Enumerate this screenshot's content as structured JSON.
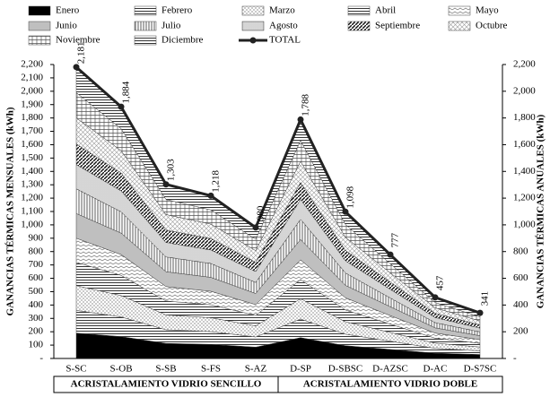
{
  "chart_data": {
    "type": "stacked_area",
    "categories": [
      "S-SC",
      "S-OB",
      "S-SB",
      "S-FS",
      "S-AZ",
      "D-SP",
      "D-SBSC",
      "D-AZSC",
      "D-AC",
      "D-S7SC"
    ],
    "groups": [
      {
        "label": "ACRISTALAMIENTO VIDRIO SENCILLO",
        "span": [
          0,
          4
        ]
      },
      {
        "label": "ACRISTALAMIENTO VIDRIO DOBLE",
        "span": [
          5,
          9
        ]
      }
    ],
    "ylabel": "GANANCIAS TÉRMICAS MENSUALES (kWh)",
    "y2label": "GANANCIAS TÉRMICAS ANUALES (kWh)",
    "ylim": [
      0,
      2200
    ],
    "y2lim": [
      0,
      2200
    ],
    "yticks": [
      {
        "value": 0,
        "label": "-"
      },
      100,
      200,
      300,
      400,
      500,
      600,
      700,
      800,
      900,
      {
        "value": 1000,
        "label": "1,000"
      },
      {
        "value": 1100,
        "label": "1,100"
      },
      {
        "value": 1200,
        "label": "1,200"
      },
      {
        "value": 1300,
        "label": "1,300"
      },
      {
        "value": 1400,
        "label": "1,400"
      },
      {
        "value": 1500,
        "label": "1,500"
      },
      {
        "value": 1600,
        "label": "1,600"
      },
      {
        "value": 1700,
        "label": "1,700"
      },
      {
        "value": 1800,
        "label": "1,800"
      },
      {
        "value": 1900,
        "label": "1,900"
      },
      {
        "value": 2000,
        "label": "2,000"
      },
      {
        "value": 2100,
        "label": "2,100"
      },
      {
        "value": 2200,
        "label": "2,200"
      }
    ],
    "y2ticks": [
      {
        "value": 0,
        "label": "-"
      },
      200,
      400,
      600,
      800,
      {
        "value": 1000,
        "label": "1,000"
      },
      {
        "value": 1200,
        "label": "1,200"
      },
      {
        "value": 1400,
        "label": "1,400"
      },
      {
        "value": 1600,
        "label": "1,600"
      },
      {
        "value": 1800,
        "label": "1,800"
      },
      {
        "value": 2000,
        "label": "2,000"
      },
      {
        "value": 2200,
        "label": "2,200"
      }
    ],
    "series": [
      {
        "name": "Enero",
        "pattern": "solid",
        "color": "#000000",
        "values": [
          190,
          164,
          113,
          106,
          85,
          156,
          96,
          68,
          40,
          30
        ]
      },
      {
        "name": "Febrero",
        "pattern": "hlines",
        "color": "#555555",
        "values": [
          170,
          147,
          102,
          95,
          76,
          139,
          86,
          61,
          36,
          27
        ]
      },
      {
        "name": "Marzo",
        "pattern": "dots",
        "color": "#444444",
        "values": [
          185,
          160,
          111,
          104,
          83,
          152,
          93,
          66,
          39,
          29
        ]
      },
      {
        "name": "Abril",
        "pattern": "hlines",
        "color": "#888888",
        "values": [
          174,
          151,
          104,
          97,
          78,
          143,
          88,
          62,
          37,
          27
        ]
      },
      {
        "name": "Mayo",
        "pattern": "zigzag",
        "color": "#666666",
        "values": [
          181,
          156,
          108,
          101,
          81,
          148,
          91,
          64,
          38,
          28
        ]
      },
      {
        "name": "Junio",
        "pattern": "solid",
        "color": "#bfbfbf",
        "values": [
          185,
          160,
          111,
          104,
          83,
          152,
          93,
          66,
          39,
          29
        ]
      },
      {
        "name": "Julio",
        "pattern": "vlines",
        "color": "#333333",
        "values": [
          185,
          160,
          111,
          104,
          83,
          152,
          93,
          66,
          39,
          29
        ]
      },
      {
        "name": "Agosto",
        "pattern": "densedots",
        "color": "#333333",
        "values": [
          181,
          156,
          108,
          101,
          81,
          148,
          91,
          64,
          38,
          28
        ]
      },
      {
        "name": "Septiembre",
        "pattern": "diag",
        "color": "#111111",
        "values": [
          155,
          134,
          93,
          86,
          70,
          127,
          78,
          55,
          32,
          24
        ]
      },
      {
        "name": "Octubre",
        "pattern": "cross",
        "color": "#999999",
        "values": [
          194,
          168,
          116,
          108,
          87,
          159,
          98,
          69,
          41,
          30
        ]
      },
      {
        "name": "Noviembre",
        "pattern": "grid",
        "color": "#555555",
        "values": [
          190,
          164,
          113,
          106,
          85,
          156,
          96,
          68,
          40,
          30
        ]
      },
      {
        "name": "Diciembre",
        "pattern": "hlines",
        "color": "#bbbbbb",
        "values": [
          190,
          164,
          113,
          106,
          85,
          156,
          96,
          68,
          40,
          30
        ]
      },
      {
        "name": "TOTAL",
        "type": "line",
        "axis": "y2",
        "color": "#222222",
        "values": [
          2181,
          1884,
          1303,
          1218,
          980,
          1788,
          1098,
          777,
          457,
          341
        ],
        "value_labels": [
          "2,181",
          "1,884",
          "1,303",
          "1,218",
          "980",
          "1,788",
          "1,098",
          "777",
          "457",
          "341"
        ]
      }
    ]
  }
}
